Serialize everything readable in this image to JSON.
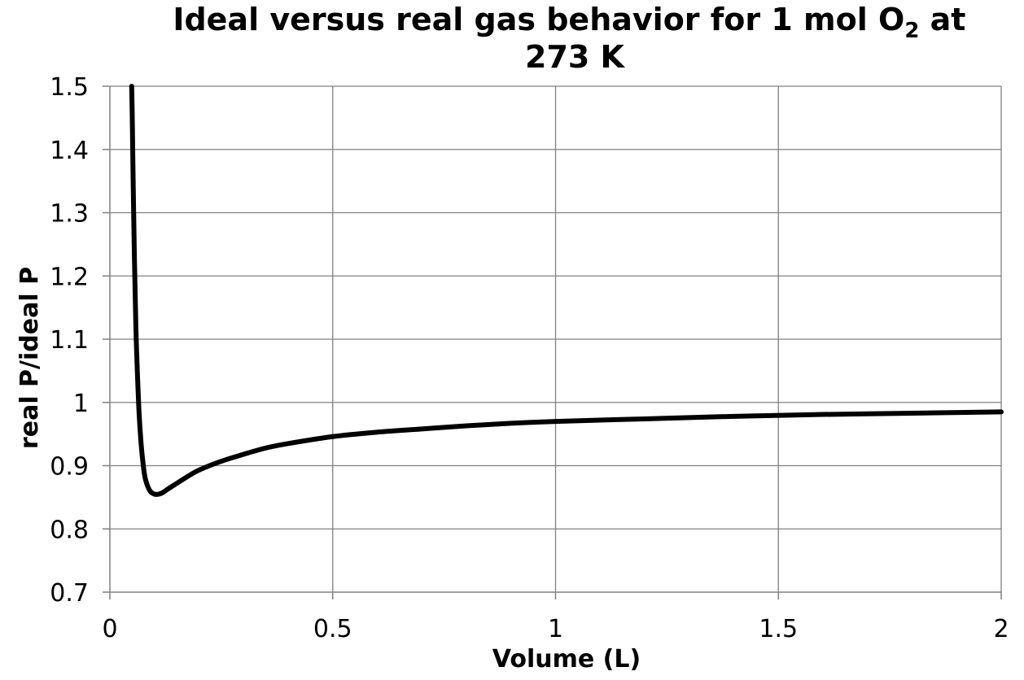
{
  "chart_data": {
    "type": "line",
    "title": {
      "prefix": "Ideal versus real gas behavior for 1 mol O",
      "subscript": "2",
      "suffix": " at",
      "line2": "273 K"
    },
    "xlabel": "Volume (L)",
    "ylabel": "real P/ideal P",
    "xlim": [
      0,
      2
    ],
    "ylim": [
      0.7,
      1.5
    ],
    "x_ticks": [
      {
        "value": 0,
        "label": "0"
      },
      {
        "value": 0.5,
        "label": "0.5"
      },
      {
        "value": 1,
        "label": "1"
      },
      {
        "value": 1.5,
        "label": "1.5"
      },
      {
        "value": 2,
        "label": "2"
      }
    ],
    "y_ticks": [
      {
        "value": 0.7,
        "label": "0.7"
      },
      {
        "value": 0.8,
        "label": "0.8"
      },
      {
        "value": 0.9,
        "label": "0.9"
      },
      {
        "value": 1.0,
        "label": "1"
      },
      {
        "value": 1.1,
        "label": "1.1"
      },
      {
        "value": 1.2,
        "label": "1.2"
      },
      {
        "value": 1.3,
        "label": "1.3"
      },
      {
        "value": 1.4,
        "label": "1.4"
      },
      {
        "value": 1.5,
        "label": "1.5"
      }
    ],
    "grid": true,
    "series": [
      {
        "color": "#000000",
        "x": [
          0.0489,
          0.05,
          0.052,
          0.055,
          0.058,
          0.06,
          0.065,
          0.07,
          0.075,
          0.08,
          0.09,
          0.1,
          0.11,
          0.12,
          0.13,
          0.15,
          0.17,
          0.2,
          0.25,
          0.3,
          0.35,
          0.4,
          0.5,
          0.6,
          0.7,
          0.8,
          0.9,
          1.0,
          1.2,
          1.4,
          1.6,
          1.8,
          2.0
        ],
        "y": [
          1.5,
          1.46,
          1.36,
          1.23,
          1.13,
          1.08,
          0.99,
          0.935,
          0.9,
          0.878,
          0.86,
          0.855,
          0.855,
          0.858,
          0.863,
          0.872,
          0.881,
          0.893,
          0.907,
          0.918,
          0.928,
          0.935,
          0.946,
          0.953,
          0.958,
          0.963,
          0.967,
          0.97,
          0.974,
          0.978,
          0.981,
          0.983,
          0.985
        ]
      }
    ]
  }
}
